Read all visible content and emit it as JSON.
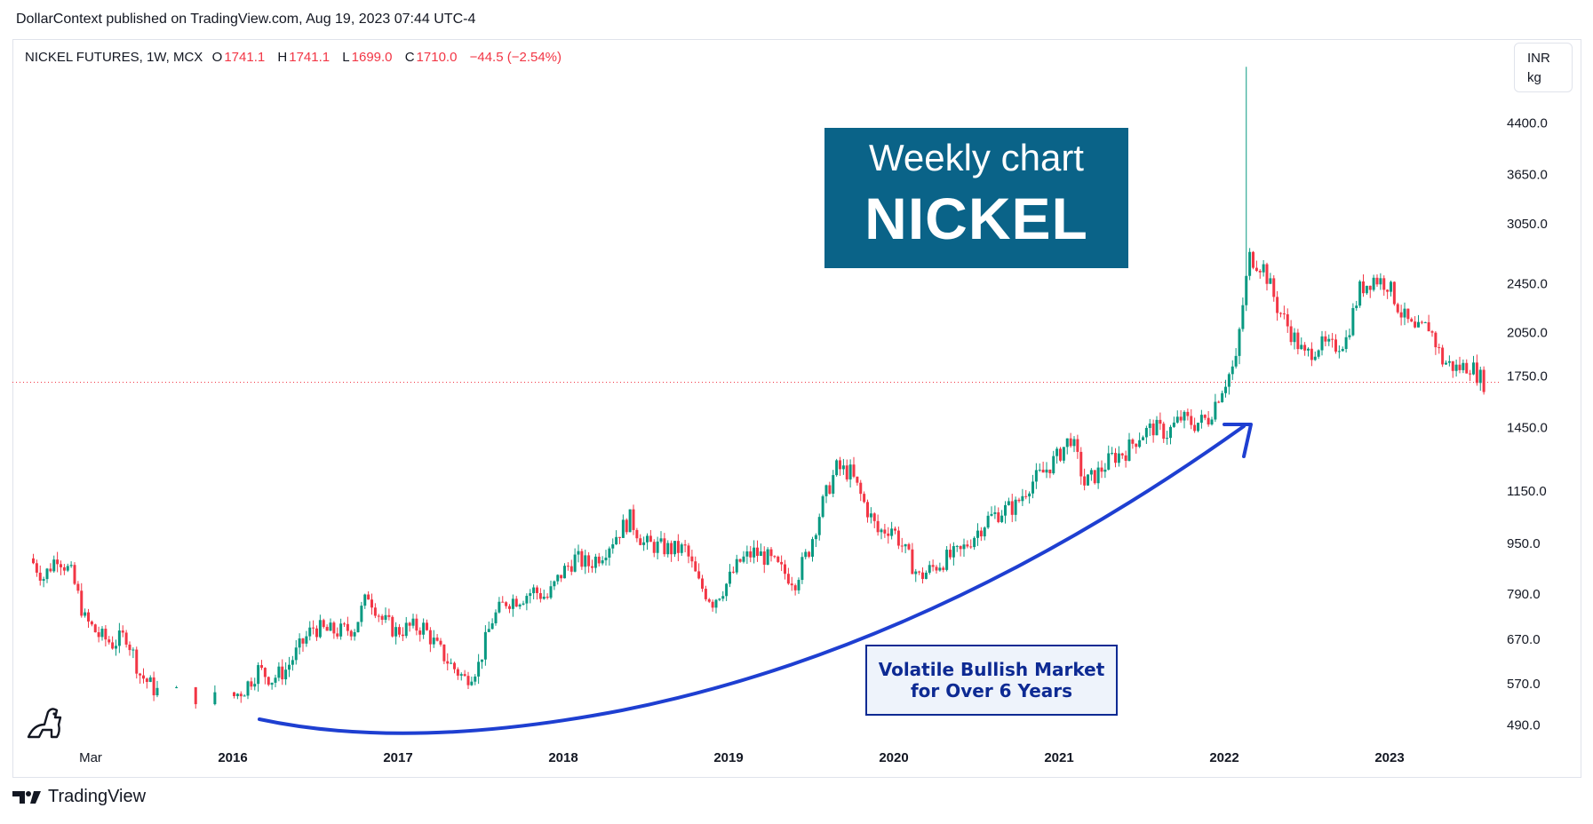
{
  "header": {
    "publisher_line": "DollarContext published on TradingView.com, Aug 19, 2023 07:44 UTC-4"
  },
  "legend": {
    "symbol": "NICKEL FUTURES, 1W, MCX",
    "o_label": "O",
    "o_value": "1741.1",
    "h_label": "H",
    "h_value": "1741.1",
    "l_label": "L",
    "l_value": "1699.0",
    "c_label": "C",
    "c_value": "1710.0",
    "change": "−44.5 (−2.54%)"
  },
  "currency": {
    "line1": "INR",
    "line2": "kg"
  },
  "title_box": {
    "line1": "Weekly chart",
    "line2": "NICKEL"
  },
  "annotation": {
    "line1": "Volatile Bullish Market",
    "line2": "for Over 6 Years"
  },
  "footer": {
    "brand": "TradingView"
  },
  "colors": {
    "up": "#089981",
    "down": "#f23645",
    "arrow": "#1e3fd1",
    "title_bg": "#0a6388"
  },
  "chart_data": {
    "type": "candlestick",
    "title": "",
    "xlabel": "",
    "ylabel": "",
    "y_scale": "log",
    "ylim": [
      440,
      5600
    ],
    "y_ticks": [
      "4400.0",
      "3650.0",
      "3050.0",
      "2450.0",
      "2050.0",
      "1750.0",
      "1450.0",
      "1150.0",
      "950.0",
      "790.0",
      "670.0",
      "570.0",
      "490.0"
    ],
    "x_ticks": [
      "Mar",
      "2016",
      "2017",
      "2018",
      "2019",
      "2020",
      "2021",
      "2022",
      "2023"
    ],
    "last_close": 1710.0,
    "series": [
      {
        "points": [
          [
            "2015-03",
            900
          ],
          [
            "2015-04",
            840
          ],
          [
            "2015-05",
            910
          ],
          [
            "2015-06",
            850
          ],
          [
            "2015-07",
            720
          ],
          [
            "2015-08",
            680
          ],
          [
            "2015-09",
            660
          ],
          [
            "2015-10",
            680
          ],
          [
            "2015-11",
            590
          ],
          [
            "2015-12",
            560
          ],
          [
            "2016-01",
            540
          ],
          [
            "2016-02",
            560
          ],
          [
            "2016-03",
            600
          ],
          [
            "2016-04",
            580
          ],
          [
            "2016-05",
            600
          ],
          [
            "2016-06",
            650
          ],
          [
            "2016-07",
            700
          ],
          [
            "2016-08",
            690
          ],
          [
            "2016-09",
            690
          ],
          [
            "2016-10",
            700
          ],
          [
            "2016-11",
            790
          ],
          [
            "2016-12",
            720
          ],
          [
            "2017-01",
            690
          ],
          [
            "2017-02",
            700
          ],
          [
            "2017-03",
            700
          ],
          [
            "2017-04",
            650
          ],
          [
            "2017-05",
            610
          ],
          [
            "2017-06",
            580
          ],
          [
            "2017-07",
            610
          ],
          [
            "2017-08",
            720
          ],
          [
            "2017-09",
            770
          ],
          [
            "2017-10",
            780
          ],
          [
            "2017-11",
            800
          ],
          [
            "2017-12",
            780
          ],
          [
            "2018-01",
            850
          ],
          [
            "2018-02",
            900
          ],
          [
            "2018-03",
            880
          ],
          [
            "2018-04",
            920
          ],
          [
            "2018-05",
            980
          ],
          [
            "2018-06",
            1040
          ],
          [
            "2018-07",
            950
          ],
          [
            "2018-08",
            940
          ],
          [
            "2018-09",
            930
          ],
          [
            "2018-10",
            930
          ],
          [
            "2018-11",
            820
          ],
          [
            "2018-12",
            770
          ],
          [
            "2019-01",
            820
          ],
          [
            "2019-02",
            890
          ],
          [
            "2019-03",
            920
          ],
          [
            "2019-04",
            900
          ],
          [
            "2019-05",
            860
          ],
          [
            "2019-06",
            830
          ],
          [
            "2019-07",
            930
          ],
          [
            "2019-08",
            1100
          ],
          [
            "2019-09",
            1250
          ],
          [
            "2019-10",
            1230
          ],
          [
            "2019-11",
            1100
          ],
          [
            "2019-12",
            990
          ],
          [
            "2020-01",
            1010
          ],
          [
            "2020-02",
            920
          ],
          [
            "2020-03",
            840
          ],
          [
            "2020-04",
            870
          ],
          [
            "2020-05",
            900
          ],
          [
            "2020-06",
            920
          ],
          [
            "2020-07",
            980
          ],
          [
            "2020-08",
            1040
          ],
          [
            "2020-09",
            1070
          ],
          [
            "2020-10",
            1090
          ],
          [
            "2020-11",
            1180
          ],
          [
            "2020-12",
            1230
          ],
          [
            "2021-01",
            1300
          ],
          [
            "2021-02",
            1400
          ],
          [
            "2021-03",
            1180
          ],
          [
            "2021-04",
            1230
          ],
          [
            "2021-05",
            1300
          ],
          [
            "2021-06",
            1330
          ],
          [
            "2021-07",
            1410
          ],
          [
            "2021-08",
            1450
          ],
          [
            "2021-09",
            1420
          ],
          [
            "2021-10",
            1500
          ],
          [
            "2021-11",
            1470
          ],
          [
            "2021-12",
            1500
          ],
          [
            "2022-01",
            1680
          ],
          [
            "2022-02",
            1840
          ],
          [
            "2022-03",
            2700
          ],
          [
            "2022-04",
            2600
          ],
          [
            "2022-05",
            2250
          ],
          [
            "2022-06",
            2050
          ],
          [
            "2022-07",
            1880
          ],
          [
            "2022-08",
            1960
          ],
          [
            "2022-09",
            1940
          ],
          [
            "2022-10",
            2000
          ],
          [
            "2022-11",
            2400
          ],
          [
            "2022-12",
            2500
          ],
          [
            "2023-01",
            2450
          ],
          [
            "2023-02",
            2200
          ],
          [
            "2023-03",
            2050
          ],
          [
            "2023-04",
            2100
          ],
          [
            "2023-05",
            1850
          ],
          [
            "2023-06",
            1800
          ],
          [
            "2023-07",
            1820
          ],
          [
            "2023-08",
            1710
          ]
        ]
      }
    ]
  }
}
